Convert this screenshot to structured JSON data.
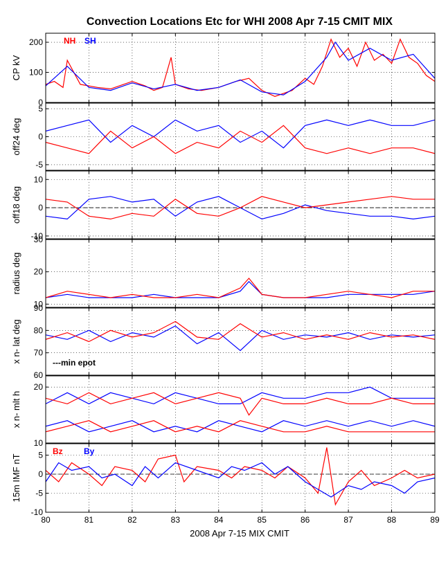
{
  "colors": {
    "red": "#ff0000",
    "blue": "#0000ff",
    "black": "#000000"
  },
  "chart_data": {
    "type": "line",
    "title": "Convection Locations Etc for WHI 2008 Apr 7-15 CMIT MIX",
    "xlabel": "2008 Apr 7-15 MIX CMIT",
    "xlim": [
      80,
      89
    ],
    "xticks": [
      "80",
      "81",
      "82",
      "83",
      "84",
      "85",
      "86",
      "87",
      "88",
      "89"
    ],
    "grid": true,
    "panels": [
      {
        "ylabel": "CP kV",
        "ylim": [
          0,
          230
        ],
        "yticks": [
          {
            "v": 0,
            "label": "0"
          },
          {
            "v": 100,
            "label": "100"
          },
          {
            "v": 200,
            "label": "200"
          }
        ],
        "legend": [
          {
            "text": "NH",
            "color": "#ff0000"
          },
          {
            "text": "SH",
            "color": "#0000ff"
          }
        ],
        "series": [
          {
            "name": "NH",
            "color": "#ff0000",
            "x": [
              80.0,
              80.2,
              80.4,
              80.5,
              80.8,
              81.2,
              81.5,
              81.8,
              82.0,
              82.3,
              82.5,
              82.7,
              82.9,
              83.0,
              83.3,
              83.6,
              84.0,
              84.4,
              84.7,
              85.0,
              85.3,
              85.7,
              86.0,
              86.2,
              86.4,
              86.6,
              86.8,
              87.0,
              87.2,
              87.4,
              87.6,
              87.8,
              88.0,
              88.2,
              88.4,
              88.6,
              88.8,
              89.0
            ],
            "y": [
              60,
              70,
              50,
              140,
              60,
              50,
              45,
              60,
              70,
              55,
              40,
              50,
              150,
              60,
              45,
              40,
              50,
              70,
              80,
              40,
              20,
              40,
              80,
              60,
              120,
              210,
              150,
              180,
              120,
              200,
              140,
              160,
              130,
              210,
              150,
              130,
              90,
              70
            ]
          },
          {
            "name": "SH",
            "color": "#0000ff",
            "x": [
              80.0,
              80.5,
              81.0,
              81.5,
              82.0,
              82.5,
              83.0,
              83.5,
              84.0,
              84.5,
              85.0,
              85.5,
              86.0,
              86.5,
              86.7,
              87.0,
              87.5,
              88.0,
              88.5,
              89.0
            ],
            "y": [
              55,
              120,
              50,
              40,
              65,
              45,
              60,
              40,
              50,
              75,
              35,
              25,
              70,
              150,
              200,
              140,
              180,
              140,
              160,
              80
            ]
          }
        ]
      },
      {
        "ylabel": "off24 deg",
        "ylim": [
          -6,
          6
        ],
        "yticks": [
          {
            "v": -5,
            "label": "-5"
          },
          {
            "v": 0,
            "label": "0"
          },
          {
            "v": 5,
            "label": "5"
          }
        ],
        "series": [
          {
            "name": "SH",
            "color": "#0000ff",
            "x": [
              80.0,
              80.5,
              81.0,
              81.5,
              82.0,
              82.5,
              83.0,
              83.5,
              84.0,
              84.5,
              85.0,
              85.5,
              86.0,
              86.5,
              87.0,
              87.5,
              88.0,
              88.5,
              89.0
            ],
            "y": [
              1,
              2,
              3,
              -1,
              2,
              0,
              3,
              1,
              2,
              -1,
              1,
              -2,
              2,
              3,
              2,
              3,
              2,
              2,
              3
            ]
          },
          {
            "name": "NH",
            "color": "#ff0000",
            "x": [
              80.0,
              80.5,
              81.0,
              81.5,
              82.0,
              82.5,
              83.0,
              83.5,
              84.0,
              84.5,
              85.0,
              85.5,
              86.0,
              86.5,
              87.0,
              87.5,
              88.0,
              88.5,
              89.0
            ],
            "y": [
              -1,
              -2,
              -3,
              1,
              -2,
              0,
              -3,
              -1,
              -2,
              1,
              -1,
              2,
              -2,
              -3,
              -2,
              -3,
              -2,
              -2,
              -3
            ]
          }
        ]
      },
      {
        "ylabel": "off18 deg",
        "ylim": [
          -11,
          13
        ],
        "yticks": [
          {
            "v": -10,
            "label": "-10"
          },
          {
            "v": 0,
            "label": "0"
          },
          {
            "v": 10,
            "label": "10"
          }
        ],
        "zero_line": true,
        "series": [
          {
            "name": "SH",
            "color": "#0000ff",
            "x": [
              80.0,
              80.5,
              81.0,
              81.5,
              82.0,
              82.5,
              83.0,
              83.5,
              84.0,
              84.5,
              85.0,
              85.5,
              86.0,
              86.5,
              87.0,
              87.5,
              88.0,
              88.5,
              89.0
            ],
            "y": [
              -3,
              -4,
              3,
              4,
              2,
              3,
              -3,
              2,
              4,
              0,
              -4,
              -2,
              1,
              -1,
              -2,
              -3,
              -3,
              -4,
              -3
            ]
          },
          {
            "name": "NH",
            "color": "#ff0000",
            "x": [
              80.0,
              80.5,
              81.0,
              81.5,
              82.0,
              82.5,
              83.0,
              83.5,
              84.0,
              84.5,
              85.0,
              85.5,
              86.0,
              86.5,
              87.0,
              87.5,
              88.0,
              88.5,
              89.0
            ],
            "y": [
              3,
              2,
              -3,
              -4,
              -2,
              -3,
              3,
              -2,
              -3,
              0,
              4,
              2,
              0,
              1,
              2,
              3,
              4,
              3,
              3
            ]
          }
        ]
      },
      {
        "ylabel": "radius deg",
        "ylim": [
          9,
          30
        ],
        "yticks": [
          {
            "v": 10,
            "label": "10"
          },
          {
            "v": 20,
            "label": "20"
          },
          {
            "v": 30,
            "label": "30"
          }
        ],
        "series": [
          {
            "name": "SH",
            "color": "#0000ff",
            "x": [
              80.0,
              80.5,
              81.0,
              81.5,
              82.0,
              82.5,
              83.0,
              83.5,
              84.0,
              84.5,
              84.7,
              85.0,
              85.5,
              86.0,
              86.5,
              87.0,
              87.5,
              88.0,
              88.5,
              89.0
            ],
            "y": [
              12,
              13,
              12,
              12,
              12,
              13,
              12,
              12,
              12,
              14,
              17,
              13,
              12,
              12,
              12,
              13,
              13,
              13,
              13,
              14
            ]
          },
          {
            "name": "NH",
            "color": "#ff0000",
            "x": [
              80.0,
              80.5,
              81.0,
              81.5,
              82.0,
              82.5,
              83.0,
              83.5,
              84.0,
              84.5,
              84.7,
              85.0,
              85.5,
              86.0,
              86.5,
              87.0,
              87.5,
              88.0,
              88.5,
              89.0
            ],
            "y": [
              12,
              14,
              13,
              12,
              13,
              12,
              12,
              13,
              12,
              15,
              18,
              13,
              12,
              12,
              13,
              14,
              13,
              12,
              14,
              14
            ]
          }
        ]
      },
      {
        "ylabel": "x n-  lat deg",
        "ylim": [
          60,
          90
        ],
        "yticks": [
          {
            "v": 60,
            "label": "60"
          },
          {
            "v": 70,
            "label": "70"
          },
          {
            "v": 80,
            "label": "80"
          },
          {
            "v": 90,
            "label": "90"
          }
        ],
        "annotation": "---min epot",
        "series": [
          {
            "name": "SH",
            "color": "#0000ff",
            "x": [
              80.0,
              80.5,
              81.0,
              81.5,
              82.0,
              82.5,
              83.0,
              83.5,
              84.0,
              84.5,
              85.0,
              85.5,
              86.0,
              86.5,
              87.0,
              87.5,
              88.0,
              88.5,
              89.0
            ],
            "y": [
              78,
              76,
              80,
              75,
              79,
              77,
              82,
              74,
              79,
              71,
              80,
              76,
              78,
              77,
              79,
              76,
              78,
              77,
              78
            ]
          },
          {
            "name": "NH",
            "color": "#ff0000",
            "x": [
              80.0,
              80.5,
              81.0,
              81.5,
              82.0,
              82.5,
              83.0,
              83.5,
              84.0,
              84.5,
              85.0,
              85.5,
              86.0,
              86.5,
              87.0,
              87.5,
              88.0,
              88.5,
              89.0
            ],
            "y": [
              76,
              79,
              75,
              80,
              77,
              79,
              84,
              77,
              76,
              83,
              77,
              79,
              76,
              78,
              76,
              79,
              77,
              78,
              76
            ]
          }
        ]
      },
      {
        "ylabel": "x n-  mlt h",
        "ylim": [
          10,
          22
        ],
        "yticks": [
          {
            "v": 10,
            "label": "10"
          },
          {
            "v": 20,
            "label": "20"
          }
        ],
        "series": [
          {
            "name": "SH",
            "color": "#0000ff",
            "x": [
              80.0,
              80.5,
              81.0,
              81.5,
              82.0,
              82.5,
              83.0,
              83.5,
              84.0,
              84.5,
              85.0,
              85.5,
              86.0,
              86.5,
              87.0,
              87.5,
              88.0,
              88.5,
              89.0
            ],
            "y": [
              17,
              19,
              17,
              19,
              18,
              17,
              19,
              18,
              17,
              17,
              19,
              18,
              18,
              19,
              19,
              20,
              18,
              18,
              18
            ]
          },
          {
            "name": "NH",
            "color": "#ff0000",
            "x": [
              80.0,
              80.5,
              81.0,
              81.5,
              82.0,
              82.5,
              83.0,
              83.5,
              84.0,
              84.5,
              84.7,
              85.0,
              85.5,
              86.0,
              86.5,
              87.0,
              87.5,
              88.0,
              88.5,
              89.0
            ],
            "y": [
              18,
              17,
              19,
              17,
              18,
              19,
              17,
              18,
              19,
              18,
              15,
              18,
              17,
              17,
              18,
              17,
              17,
              18,
              17,
              17
            ]
          },
          {
            "name": "SH",
            "color": "#0000ff",
            "x": [
              80.0,
              80.5,
              81.0,
              81.5,
              82.0,
              82.5,
              83.0,
              83.5,
              84.0,
              84.5,
              85.0,
              85.5,
              86.0,
              86.5,
              87.0,
              87.5,
              88.0,
              88.5,
              89.0
            ],
            "y": [
              13,
              14,
              12,
              13,
              14,
              12,
              13,
              12,
              14,
              13,
              12,
              14,
              13,
              14,
              13,
              14,
              13,
              14,
              13
            ]
          },
          {
            "name": "NH",
            "color": "#ff0000",
            "x": [
              80.0,
              80.5,
              81.0,
              81.5,
              82.0,
              82.5,
              83.0,
              83.5,
              84.0,
              84.5,
              85.0,
              85.5,
              86.0,
              86.5,
              87.0,
              87.5,
              88.0,
              88.5,
              89.0
            ],
            "y": [
              12,
              13,
              14,
              12,
              13,
              14,
              12,
              13,
              12,
              14,
              13,
              12,
              12,
              13,
              12,
              12,
              12,
              12,
              12
            ]
          }
        ]
      },
      {
        "ylabel": "15m IMF nT",
        "ylim": [
          -10,
          8
        ],
        "yticks": [
          {
            "v": -10,
            "label": "-10"
          },
          {
            "v": -5,
            "label": "-5"
          },
          {
            "v": 0,
            "label": "0"
          },
          {
            "v": 5,
            "label": "5"
          }
        ],
        "zero_line": true,
        "legend": [
          {
            "text": "Bz",
            "color": "#ff0000"
          },
          {
            "text": "By",
            "color": "#0000ff"
          }
        ],
        "series": [
          {
            "name": "Bz",
            "color": "#ff0000",
            "x": [
              80.0,
              80.3,
              80.6,
              81.0,
              81.3,
              81.6,
              82.0,
              82.3,
              82.6,
              83.0,
              83.2,
              83.5,
              84.0,
              84.3,
              84.6,
              85.0,
              85.3,
              85.6,
              86.0,
              86.3,
              86.5,
              86.7,
              87.0,
              87.3,
              87.6,
              88.0,
              88.3,
              88.6,
              89.0
            ],
            "y": [
              1,
              -2,
              3,
              0,
              -3,
              2,
              1,
              -2,
              4,
              5,
              -2,
              2,
              1,
              -1,
              2,
              1,
              -1,
              2,
              -1,
              -5,
              7,
              -8,
              -2,
              1,
              -3,
              -1,
              1,
              -1,
              0
            ]
          },
          {
            "name": "By",
            "color": "#0000ff",
            "x": [
              80.0,
              80.3,
              80.6,
              81.0,
              81.3,
              81.6,
              82.0,
              82.3,
              82.6,
              83.0,
              83.5,
              84.0,
              84.3,
              84.6,
              85.0,
              85.3,
              85.6,
              86.0,
              86.3,
              86.6,
              87.0,
              87.3,
              87.6,
              88.0,
              88.3,
              88.6,
              89.0
            ],
            "y": [
              -2,
              3,
              1,
              2,
              -1,
              0,
              -3,
              2,
              -1,
              3,
              1,
              -1,
              2,
              1,
              3,
              0,
              2,
              -2,
              -4,
              -6,
              -3,
              -4,
              -2,
              -3,
              -5,
              -2,
              -1
            ]
          }
        ]
      }
    ]
  }
}
